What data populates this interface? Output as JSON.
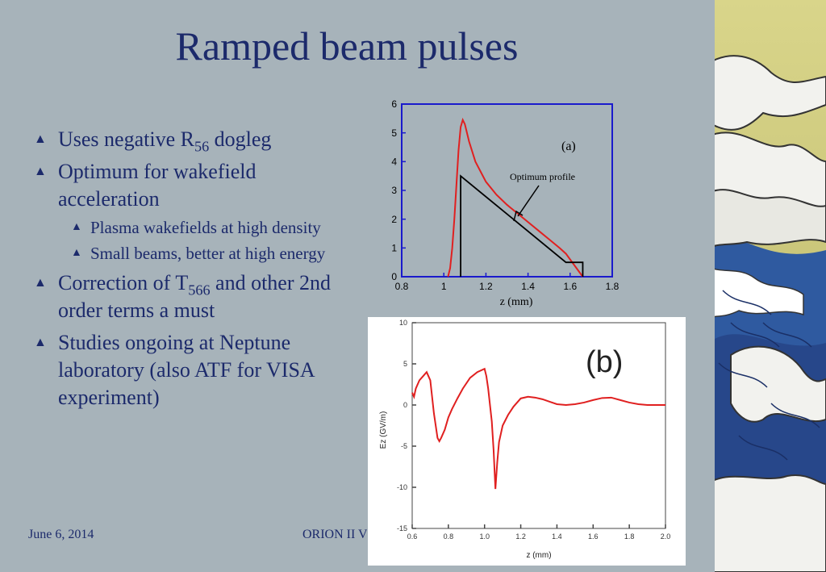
{
  "slide": {
    "title": "Ramped beam pulses",
    "bullets": [
      {
        "pre": "Uses negative R",
        "sub": "56",
        "post": " dogleg"
      },
      {
        "text": "Optimum for wakefield acceleration"
      },
      {
        "text": "Plasma wakefields at high density"
      },
      {
        "text": "Small beams, better at high energy"
      },
      {
        "pre": "Correction of T",
        "sub": "566",
        "post": " and other 2nd order terms a must"
      },
      {
        "text": "Studies ongoing at Neptune laboratory (also ATF for VISA experiment)"
      }
    ],
    "footer_date": "June 6, 2014",
    "footer_mid": "ORION II V"
  },
  "colors": {
    "title": "#1c2a6b",
    "chart_a_axis": "#1a1acc",
    "trace": "#e02020"
  },
  "chart_data": [
    {
      "type": "line",
      "panel_label": "(a)",
      "xlabel": "z (mm)",
      "ylabel": "",
      "xlim": [
        0.8,
        1.8
      ],
      "ylim": [
        0,
        6
      ],
      "xticks": [
        "0.8",
        "1",
        "1.2",
        "1.4",
        "1.6",
        "1.8"
      ],
      "yticks": [
        "0",
        "1",
        "2",
        "3",
        "4",
        "5",
        "6"
      ],
      "annotation": "Optimum profile",
      "series": [
        {
          "role": "measured",
          "x": [
            1.02,
            1.03,
            1.04,
            1.05,
            1.06,
            1.07,
            1.08,
            1.09,
            1.1,
            1.12,
            1.15,
            1.2,
            1.25,
            1.3,
            1.35,
            1.4,
            1.45,
            1.5,
            1.55,
            1.58,
            1.6,
            1.62,
            1.64,
            1.66
          ],
          "y": [
            0.0,
            0.3,
            1.0,
            2.0,
            3.2,
            4.4,
            5.2,
            5.45,
            5.3,
            4.7,
            4.0,
            3.3,
            2.85,
            2.5,
            2.2,
            1.9,
            1.6,
            1.3,
            1.0,
            0.8,
            0.6,
            0.4,
            0.2,
            0.0
          ]
        },
        {
          "role": "optimum",
          "x": [
            1.08,
            1.08,
            1.58,
            1.58,
            1.66,
            1.66
          ],
          "y": [
            0,
            3.5,
            0.5,
            0.5,
            0.5,
            0
          ]
        }
      ]
    },
    {
      "type": "line",
      "panel_label": "(b)",
      "xlabel": "z (mm)",
      "ylabel": "Ez (GV/m)",
      "xlim": [
        0.6,
        2.0
      ],
      "ylim": [
        -15,
        10
      ],
      "xticks": [
        "0.6",
        "0.8",
        "1.0",
        "1.2",
        "1.4",
        "1.6",
        "1.8",
        "2.0"
      ],
      "yticks": [
        "-15",
        "-10",
        "-5",
        "0",
        "5",
        "10"
      ],
      "series": [
        {
          "role": "wake",
          "x": [
            0.6,
            0.61,
            0.62,
            0.64,
            0.66,
            0.68,
            0.69,
            0.7,
            0.71,
            0.72,
            0.73,
            0.74,
            0.75,
            0.76,
            0.78,
            0.8,
            0.82,
            0.85,
            0.88,
            0.92,
            0.96,
            1.0,
            1.01,
            1.02,
            1.03,
            1.04,
            1.05,
            1.06,
            1.07,
            1.08,
            1.1,
            1.13,
            1.16,
            1.2,
            1.24,
            1.28,
            1.32,
            1.36,
            1.4,
            1.45,
            1.5,
            1.55,
            1.6,
            1.65,
            1.7,
            1.75,
            1.8,
            1.85,
            1.9,
            1.95,
            2.0
          ],
          "y": [
            1.5,
            1.0,
            2.0,
            3.0,
            3.5,
            4.0,
            3.5,
            3.0,
            1.0,
            -1.0,
            -2.5,
            -4.0,
            -4.4,
            -4.0,
            -3.0,
            -1.5,
            -0.5,
            0.8,
            2.0,
            3.3,
            4.0,
            4.4,
            3.5,
            2.0,
            0.0,
            -2.0,
            -5.5,
            -10.2,
            -7.0,
            -4.5,
            -2.5,
            -1.2,
            -0.2,
            0.8,
            1.0,
            0.9,
            0.7,
            0.4,
            0.1,
            0.0,
            0.1,
            0.3,
            0.6,
            0.85,
            0.9,
            0.6,
            0.3,
            0.1,
            0.0,
            0.0,
            0.0
          ]
        }
      ]
    }
  ]
}
